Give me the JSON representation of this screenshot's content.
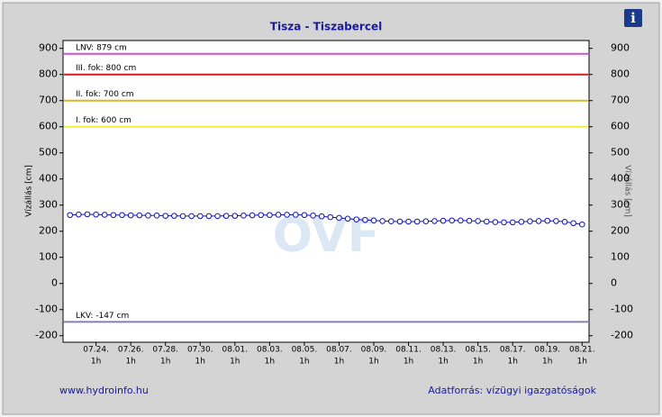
{
  "chart_data": {
    "type": "line",
    "title": "Tisza - Tiszabercel",
    "ylabel": "Vízállás [cm]",
    "y2label": "Vízállás [cm]",
    "watermark": "OVF",
    "footer_left": "www.hydroinfo.hu",
    "footer_right": "Adatforrás: vízügyi igazgatóságok",
    "info_icon": "i",
    "ylim": [
      -225,
      930
    ],
    "yticks": [
      -200,
      -100,
      0,
      100,
      200,
      300,
      400,
      500,
      600,
      700,
      800,
      900
    ],
    "y2lim": [
      -225,
      930
    ],
    "y2ticks": [
      -200,
      -100,
      0,
      100,
      200,
      300,
      400,
      500,
      600,
      700,
      800,
      900
    ],
    "thresholds": [
      {
        "label": "LNV: 879 cm",
        "value": 879,
        "color": "#d050d0"
      },
      {
        "label": "III. fok: 800 cm",
        "value": 800,
        "color": "#cc2020"
      },
      {
        "label": "II. fok: 700 cm",
        "value": 700,
        "color": "#d8b820"
      },
      {
        "label": "I. fok: 600 cm",
        "value": 600,
        "color": "#f0f040"
      },
      {
        "label": "LKV: -147 cm",
        "value": -147,
        "color": "#8080b8"
      }
    ],
    "categories": [
      null,
      null,
      null,
      [
        "07.24.",
        "1h"
      ],
      null,
      null,
      null,
      [
        "07.26.",
        "1h"
      ],
      null,
      null,
      null,
      [
        "07.28.",
        "1h"
      ],
      null,
      null,
      null,
      [
        "07.30.",
        "1h"
      ],
      null,
      null,
      null,
      [
        "08.01.",
        "1h"
      ],
      null,
      null,
      null,
      [
        "08.03.",
        "1h"
      ],
      null,
      null,
      null,
      [
        "08.05.",
        "1h"
      ],
      null,
      null,
      null,
      [
        "08.07.",
        "1h"
      ],
      null,
      null,
      null,
      [
        "08.09.",
        "1h"
      ],
      null,
      null,
      null,
      [
        "08.11.",
        "1h"
      ],
      null,
      null,
      null,
      [
        "08.13.",
        "1h"
      ],
      null,
      null,
      null,
      [
        "08.15.",
        "1h"
      ],
      null,
      null,
      null,
      [
        "08.17.",
        "1h"
      ],
      null,
      null,
      null,
      [
        "08.19.",
        "1h"
      ],
      null,
      null,
      null,
      [
        "08.21.",
        "1h"
      ]
    ],
    "series": [
      {
        "color": "#1010c0",
        "values": [
          262,
          264,
          265,
          264,
          263,
          262,
          262,
          261,
          261,
          260,
          260,
          259,
          259,
          258,
          258,
          258,
          258,
          258,
          259,
          259,
          260,
          261,
          262,
          262,
          263,
          263,
          263,
          262,
          260,
          257,
          254,
          251,
          248,
          245,
          243,
          241,
          239,
          238,
          237,
          237,
          237,
          238,
          239,
          240,
          241,
          241,
          240,
          239,
          237,
          235,
          234,
          234,
          236,
          238,
          239,
          240,
          239,
          236,
          231,
          226
        ]
      }
    ]
  }
}
